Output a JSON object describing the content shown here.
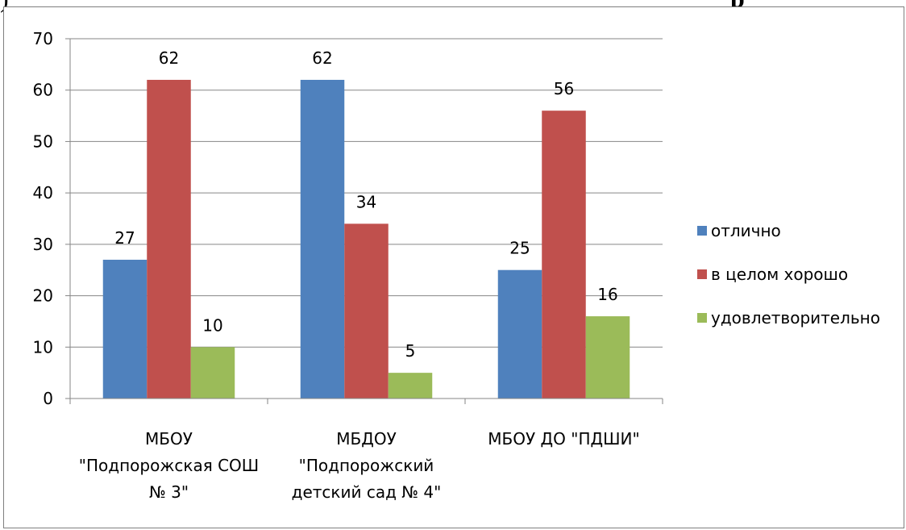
{
  "header": {
    "left_text": ")",
    "right_text": "р"
  },
  "chart_data": {
    "type": "bar",
    "categories": [
      [
        "МБОУ",
        "\"Подпорожская СОШ",
        "№ 3\""
      ],
      [
        "МБДОУ",
        "\"Подпорожский",
        "детский сад № 4\""
      ],
      [
        "МБОУ ДО \"ПДШИ\""
      ]
    ],
    "series": [
      {
        "name": "отлично",
        "values": [
          27,
          62,
          25
        ],
        "color": "#4f81bd"
      },
      {
        "name": "в целом хорошо",
        "values": [
          62,
          34,
          56
        ],
        "color": "#c0504d"
      },
      {
        "name": "удовлетворительно",
        "values": [
          10,
          5,
          16
        ],
        "color": "#9bbb59"
      }
    ],
    "ylim": [
      0,
      70
    ],
    "yticks": [
      0,
      10,
      20,
      30,
      40,
      50,
      60,
      70
    ],
    "grid": true,
    "legend": "right",
    "data_labels": true
  }
}
